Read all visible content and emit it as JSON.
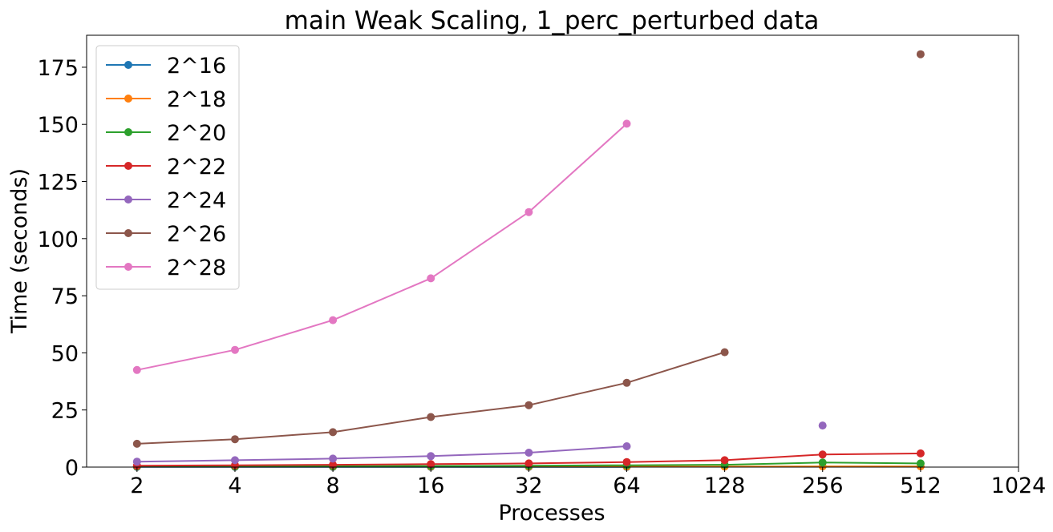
{
  "chart_data": {
    "type": "line",
    "title": "main Weak Scaling, 1_perc_perturbed data",
    "xlabel": "Processes",
    "ylabel": "Time (seconds)",
    "x_scale": "log2",
    "x_ticks": [
      2,
      4,
      8,
      16,
      32,
      64,
      128,
      256,
      512,
      1024
    ],
    "x_tick_labels": [
      "2",
      "4",
      "8",
      "16",
      "32",
      "64",
      "128",
      "256",
      "512",
      "1024"
    ],
    "xlim": [
      1.4,
      1024
    ],
    "y_ticks": [
      0,
      25,
      50,
      75,
      100,
      125,
      150,
      175
    ],
    "y_tick_labels": [
      "0",
      "25",
      "50",
      "75",
      "100",
      "125",
      "150",
      "175"
    ],
    "ylim": [
      0,
      189
    ],
    "grid": false,
    "legend_position": "top-left",
    "series": [
      {
        "name": "2^16",
        "color": "#1f77b4",
        "x": [
          2,
          4,
          8,
          16,
          32,
          64
        ],
        "values": [
          0.1,
          0.1,
          0.1,
          0.1,
          0.1,
          0.1
        ]
      },
      {
        "name": "2^18",
        "color": "#ff7f0e",
        "x": [
          2,
          4,
          8,
          16,
          32,
          64,
          128,
          256,
          512
        ],
        "values": [
          0.2,
          0.2,
          0.2,
          0.2,
          0.2,
          0.2,
          0.2,
          0.3,
          0.3
        ]
      },
      {
        "name": "2^20",
        "color": "#2ca02c",
        "x": [
          2,
          4,
          8,
          16,
          32,
          64,
          128,
          256,
          512
        ],
        "values": [
          0.3,
          0.3,
          0.4,
          0.5,
          0.6,
          0.8,
          1.0,
          2.0,
          1.6
        ]
      },
      {
        "name": "2^22",
        "color": "#d62728",
        "x": [
          2,
          4,
          8,
          16,
          32,
          64,
          128,
          256,
          512
        ],
        "values": [
          0.6,
          0.8,
          1.0,
          1.3,
          1.6,
          2.2,
          3.0,
          5.5,
          6.0
        ]
      },
      {
        "name": "2^24",
        "color": "#9467bd",
        "x": [
          2,
          4,
          8,
          16,
          32,
          64,
          null,
          256
        ],
        "values": [
          2.4,
          3.0,
          3.7,
          4.8,
          6.3,
          9.1,
          null,
          18.2
        ]
      },
      {
        "name": "2^26",
        "color": "#8c564b",
        "x": [
          2,
          4,
          8,
          16,
          32,
          64,
          128,
          null,
          512
        ],
        "values": [
          10.2,
          12.2,
          15.3,
          21.9,
          27.1,
          36.9,
          50.3,
          null,
          180.7
        ]
      },
      {
        "name": "2^28",
        "color": "#e377c2",
        "x": [
          2,
          4,
          8,
          16,
          32,
          64
        ],
        "values": [
          42.5,
          51.3,
          64.3,
          82.6,
          111.6,
          150.3
        ]
      }
    ]
  }
}
